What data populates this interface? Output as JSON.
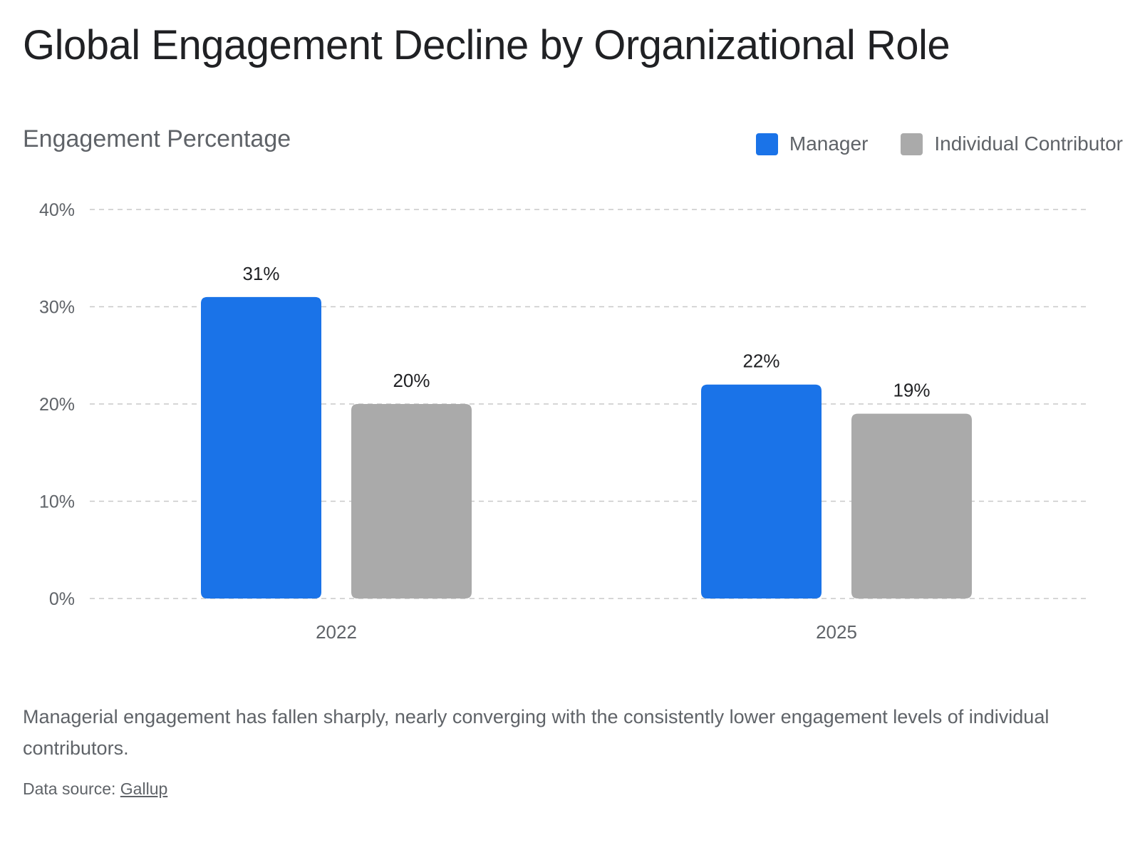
{
  "header": {
    "title": "Global Engagement Decline by Organizational Role"
  },
  "chart_data": {
    "type": "bar",
    "title": "Global Engagement Decline by Organizational Role",
    "ylabel": "Engagement Percentage",
    "xlabel": "",
    "categories": [
      "2022",
      "2025"
    ],
    "series": [
      {
        "name": "Manager",
        "values": [
          31,
          22
        ],
        "labels": [
          "31%",
          "22%"
        ],
        "color": "#1a73e8"
      },
      {
        "name": "Individual Contributor",
        "values": [
          20,
          19
        ],
        "labels": [
          "20%",
          "19%"
        ],
        "color": "#aaaaaa"
      }
    ],
    "ylim": [
      0,
      40
    ],
    "yticks": [
      0,
      10,
      20,
      30,
      40
    ],
    "ytick_labels": [
      "0%",
      "10%",
      "20%",
      "30%",
      "40%"
    ],
    "grid": true,
    "legend_position": "top-right"
  },
  "footer": {
    "caption": "Managerial engagement has fallen sharply, nearly converging with the consistently lower engagement levels of individual contributors.",
    "source_prefix": "Data source: ",
    "source_link": "Gallup"
  }
}
